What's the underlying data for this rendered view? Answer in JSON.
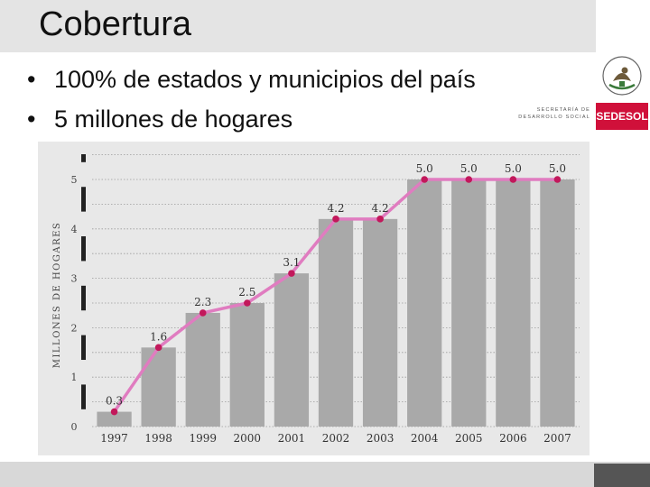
{
  "slide": {
    "title": "Cobertura",
    "bullets": [
      "100% de estados y municipios del país",
      "5 millones de hogares"
    ]
  },
  "logo": {
    "ministry_line1": "SECRETARÍA DE",
    "ministry_line2": "DESARROLLO SOCIAL",
    "badge": "SEDESOL",
    "badge_color": "#d0103a"
  },
  "chart_data": {
    "type": "bar",
    "categories": [
      "1997",
      "1998",
      "1999",
      "2000",
      "2001",
      "2002",
      "2003",
      "2004",
      "2005",
      "2006",
      "2007"
    ],
    "values": [
      0.3,
      1.6,
      2.3,
      2.5,
      3.1,
      4.2,
      4.2,
      5.0,
      5.0,
      5.0,
      5.0
    ],
    "data_labels": [
      "0.3",
      "1.6",
      "2.3",
      "2.5",
      "3.1",
      "4.2",
      "4.2",
      "5.0",
      "5.0",
      "5.0",
      "5.0"
    ],
    "overlay_line": true,
    "ylabel": "MILLONES DE HOGARES",
    "xlabel": "",
    "ylim": [
      0,
      5.5
    ],
    "yticks": [
      "0",
      "1",
      "2",
      "3",
      "4",
      "5"
    ],
    "grid": "dotted-horizontal",
    "bar_color": "#a9a9a9",
    "line_color": "#e07cc0",
    "marker_color": "#c2185b",
    "label_color": "#333333"
  }
}
